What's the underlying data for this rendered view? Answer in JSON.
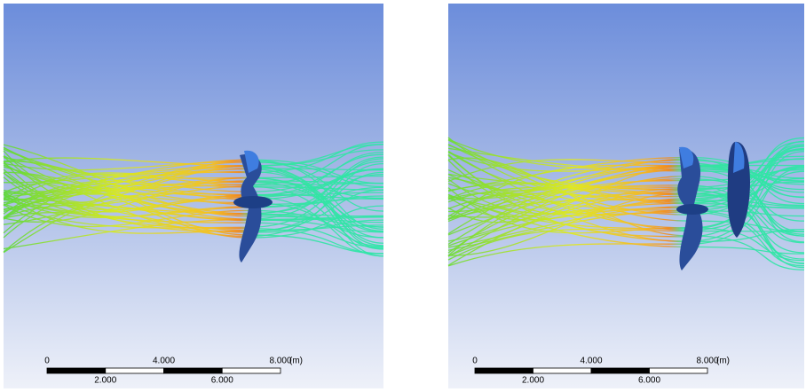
{
  "panels": [
    {
      "scale_bar": {
        "top_labels": [
          "0",
          "4.000",
          "8.000"
        ],
        "unit": "(m)",
        "bottom_labels": [
          "2.000",
          "6.000"
        ]
      }
    },
    {
      "scale_bar": {
        "top_labels": [
          "0",
          "4.000",
          "8.000"
        ],
        "unit": "(m)",
        "bottom_labels": [
          "2.000",
          "6.000"
        ]
      }
    }
  ]
}
